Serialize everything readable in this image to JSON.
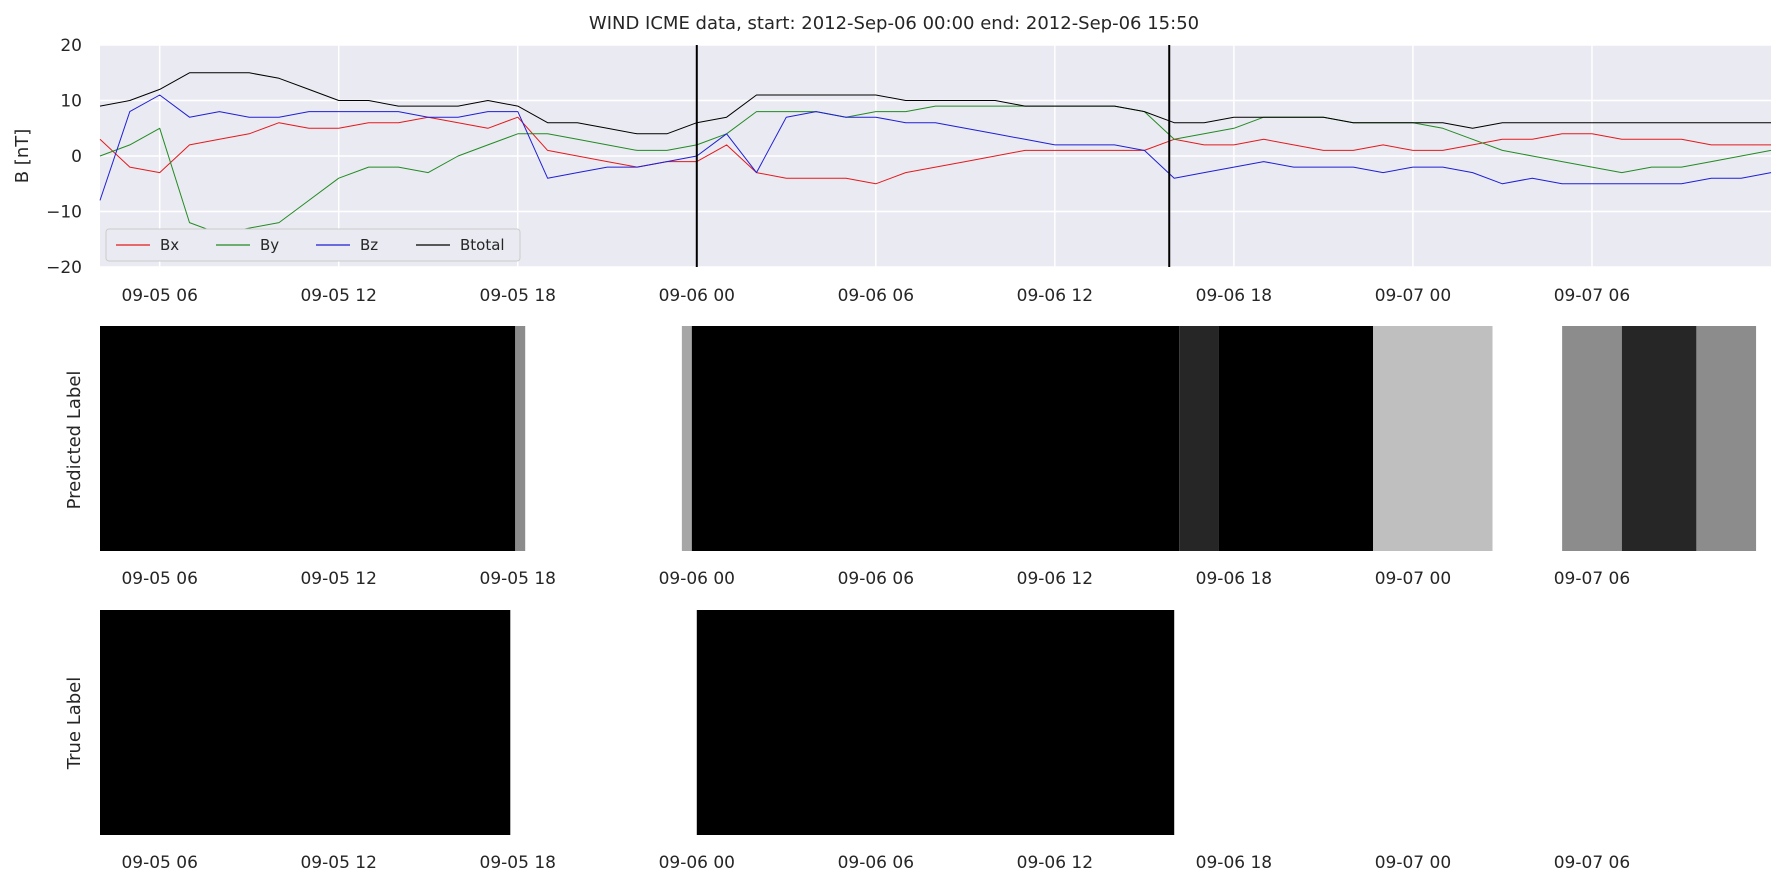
{
  "chart_data": [
    {
      "type": "line",
      "title": "WIND ICME data, start: 2012-Sep-06 00:00  end: 2012-Sep-06 15:50",
      "xlabel": "",
      "ylabel": "B [nT]",
      "ylim": [
        -20,
        20
      ],
      "yticks": [
        20,
        10,
        0,
        -10,
        -20
      ],
      "x_start": "2012-09-05 04:00",
      "x_end": "2012-09-07 12:00",
      "xticks": [
        "09-05 06",
        "09-05 12",
        "09-05 18",
        "09-06 00",
        "09-06 06",
        "09-06 12",
        "09-06 18",
        "09-07 00",
        "09-07 06"
      ],
      "grid": true,
      "legend": "lower-left",
      "event_markers": [
        "2012-09-06 00:00",
        "2012-09-06 15:50"
      ],
      "series": [
        {
          "name": "Bx",
          "color": "#e41a1c",
          "x": [
            "09-05 04:00",
            "09-05 05:00",
            "09-05 06:00",
            "09-05 07:00",
            "09-05 08:00",
            "09-05 09:00",
            "09-05 10:00",
            "09-05 11:00",
            "09-05 12:00",
            "09-05 13:00",
            "09-05 14:00",
            "09-05 15:00",
            "09-05 16:00",
            "09-05 17:00",
            "09-05 18:00",
            "09-05 19:00",
            "09-05 20:00",
            "09-05 21:00",
            "09-05 22:00",
            "09-05 23:00",
            "09-06 00:00",
            "09-06 01:00",
            "09-06 02:00",
            "09-06 03:00",
            "09-06 04:00",
            "09-06 05:00",
            "09-06 06:00",
            "09-06 07:00",
            "09-06 08:00",
            "09-06 09:00",
            "09-06 10:00",
            "09-06 11:00",
            "09-06 12:00",
            "09-06 13:00",
            "09-06 14:00",
            "09-06 15:00",
            "09-06 16:00",
            "09-06 17:00",
            "09-06 18:00",
            "09-06 19:00",
            "09-06 20:00",
            "09-06 21:00",
            "09-06 22:00",
            "09-06 23:00",
            "09-07 00:00",
            "09-07 01:00",
            "09-07 02:00",
            "09-07 03:00",
            "09-07 04:00",
            "09-07 05:00",
            "09-07 06:00",
            "09-07 07:00",
            "09-07 08:00",
            "09-07 09:00",
            "09-07 10:00",
            "09-07 11:00",
            "09-07 12:00"
          ],
          "values": [
            3,
            -2,
            -3,
            2,
            3,
            4,
            6,
            5,
            5,
            6,
            6,
            7,
            6,
            5,
            7,
            1,
            0,
            -1,
            -2,
            -1,
            -1,
            2,
            -3,
            -4,
            -4,
            -4,
            -5,
            -3,
            -2,
            -1,
            0,
            1,
            1,
            1,
            1,
            1,
            3,
            2,
            2,
            3,
            2,
            1,
            1,
            2,
            1,
            1,
            2,
            3,
            3,
            4,
            4,
            3,
            3,
            3,
            2,
            2,
            2
          ]
        },
        {
          "name": "By",
          "color": "#228b22",
          "x": [
            "09-05 04:00",
            "09-05 05:00",
            "09-05 06:00",
            "09-05 07:00",
            "09-05 08:00",
            "09-05 09:00",
            "09-05 10:00",
            "09-05 11:00",
            "09-05 12:00",
            "09-05 13:00",
            "09-05 14:00",
            "09-05 15:00",
            "09-05 16:00",
            "09-05 17:00",
            "09-05 18:00",
            "09-05 19:00",
            "09-05 20:00",
            "09-05 21:00",
            "09-05 22:00",
            "09-05 23:00",
            "09-06 00:00",
            "09-06 01:00",
            "09-06 02:00",
            "09-06 03:00",
            "09-06 04:00",
            "09-06 05:00",
            "09-06 06:00",
            "09-06 07:00",
            "09-06 08:00",
            "09-06 09:00",
            "09-06 10:00",
            "09-06 11:00",
            "09-06 12:00",
            "09-06 13:00",
            "09-06 14:00",
            "09-06 15:00",
            "09-06 16:00",
            "09-06 17:00",
            "09-06 18:00",
            "09-06 19:00",
            "09-06 20:00",
            "09-06 21:00",
            "09-06 22:00",
            "09-06 23:00",
            "09-07 00:00",
            "09-07 01:00",
            "09-07 02:00",
            "09-07 03:00",
            "09-07 04:00",
            "09-07 05:00",
            "09-07 06:00",
            "09-07 07:00",
            "09-07 08:00",
            "09-07 09:00",
            "09-07 10:00",
            "09-07 11:00",
            "09-07 12:00"
          ],
          "values": [
            0,
            2,
            5,
            -12,
            -14,
            -13,
            -12,
            -8,
            -4,
            -2,
            -2,
            -3,
            0,
            2,
            4,
            4,
            3,
            2,
            1,
            1,
            2,
            4,
            8,
            8,
            8,
            7,
            8,
            8,
            9,
            9,
            9,
            9,
            9,
            9,
            9,
            8,
            3,
            4,
            5,
            7,
            7,
            7,
            6,
            6,
            6,
            5,
            3,
            1,
            0,
            -1,
            -2,
            -3,
            -2,
            -2,
            -1,
            0,
            1
          ]
        },
        {
          "name": "Bz",
          "color": "#1f1fd6",
          "x": [
            "09-05 04:00",
            "09-05 05:00",
            "09-05 06:00",
            "09-05 07:00",
            "09-05 08:00",
            "09-05 09:00",
            "09-05 10:00",
            "09-05 11:00",
            "09-05 12:00",
            "09-05 13:00",
            "09-05 14:00",
            "09-05 15:00",
            "09-05 16:00",
            "09-05 17:00",
            "09-05 18:00",
            "09-05 19:00",
            "09-05 20:00",
            "09-05 21:00",
            "09-05 22:00",
            "09-05 23:00",
            "09-06 00:00",
            "09-06 01:00",
            "09-06 02:00",
            "09-06 03:00",
            "09-06 04:00",
            "09-06 05:00",
            "09-06 06:00",
            "09-06 07:00",
            "09-06 08:00",
            "09-06 09:00",
            "09-06 10:00",
            "09-06 11:00",
            "09-06 12:00",
            "09-06 13:00",
            "09-06 14:00",
            "09-06 15:00",
            "09-06 16:00",
            "09-06 17:00",
            "09-06 18:00",
            "09-06 19:00",
            "09-06 20:00",
            "09-06 21:00",
            "09-06 22:00",
            "09-06 23:00",
            "09-07 00:00",
            "09-07 01:00",
            "09-07 02:00",
            "09-07 03:00",
            "09-07 04:00",
            "09-07 05:00",
            "09-07 06:00",
            "09-07 07:00",
            "09-07 08:00",
            "09-07 09:00",
            "09-07 10:00",
            "09-07 11:00",
            "09-07 12:00"
          ],
          "values": [
            -8,
            8,
            11,
            7,
            8,
            7,
            7,
            8,
            8,
            8,
            8,
            7,
            7,
            8,
            8,
            -4,
            -3,
            -2,
            -2,
            -1,
            0,
            4,
            -3,
            7,
            8,
            7,
            7,
            6,
            6,
            5,
            4,
            3,
            2,
            2,
            2,
            1,
            -4,
            -3,
            -2,
            -1,
            -2,
            -2,
            -2,
            -3,
            -2,
            -2,
            -3,
            -5,
            -4,
            -5,
            -5,
            -5,
            -5,
            -5,
            -4,
            -4,
            -3
          ]
        },
        {
          "name": "Btotal",
          "color": "#000000",
          "x": [
            "09-05 04:00",
            "09-05 05:00",
            "09-05 06:00",
            "09-05 07:00",
            "09-05 08:00",
            "09-05 09:00",
            "09-05 10:00",
            "09-05 11:00",
            "09-05 12:00",
            "09-05 13:00",
            "09-05 14:00",
            "09-05 15:00",
            "09-05 16:00",
            "09-05 17:00",
            "09-05 18:00",
            "09-05 19:00",
            "09-05 20:00",
            "09-05 21:00",
            "09-05 22:00",
            "09-05 23:00",
            "09-06 00:00",
            "09-06 01:00",
            "09-06 02:00",
            "09-06 03:00",
            "09-06 04:00",
            "09-06 05:00",
            "09-06 06:00",
            "09-06 07:00",
            "09-06 08:00",
            "09-06 09:00",
            "09-06 10:00",
            "09-06 11:00",
            "09-06 12:00",
            "09-06 13:00",
            "09-06 14:00",
            "09-06 15:00",
            "09-06 16:00",
            "09-06 17:00",
            "09-06 18:00",
            "09-06 19:00",
            "09-06 20:00",
            "09-06 21:00",
            "09-06 22:00",
            "09-06 23:00",
            "09-07 00:00",
            "09-07 01:00",
            "09-07 02:00",
            "09-07 03:00",
            "09-07 04:00",
            "09-07 05:00",
            "09-07 06:00",
            "09-07 07:00",
            "09-07 08:00",
            "09-07 09:00",
            "09-07 10:00",
            "09-07 11:00",
            "09-07 12:00"
          ],
          "values": [
            9,
            10,
            12,
            15,
            15,
            15,
            14,
            12,
            10,
            10,
            9,
            9,
            9,
            10,
            9,
            6,
            6,
            5,
            4,
            4,
            6,
            7,
            11,
            11,
            11,
            11,
            11,
            10,
            10,
            10,
            10,
            9,
            9,
            9,
            9,
            8,
            6,
            6,
            7,
            7,
            7,
            7,
            6,
            6,
            6,
            6,
            5,
            6,
            6,
            6,
            6,
            6,
            6,
            6,
            6,
            6,
            6
          ]
        }
      ]
    },
    {
      "type": "heatmap",
      "ylabel": "Predicted Label",
      "colormap": "white-to-black",
      "x_start": "2012-09-05 04:00",
      "x_end": "2012-09-07 12:00",
      "xticks": [
        "09-05 06",
        "09-05 12",
        "09-05 18",
        "09-06 00",
        "09-06 06",
        "09-06 12",
        "09-06 18",
        "09-07 00",
        "09-07 06"
      ],
      "segments": [
        {
          "start": "09-05 04:00",
          "end": "09-05 17:55",
          "value": 1.0
        },
        {
          "start": "09-05 17:55",
          "end": "09-05 18:15",
          "value": 0.45
        },
        {
          "start": "09-05 23:30",
          "end": "09-05 23:50",
          "value": 0.35
        },
        {
          "start": "09-05 23:50",
          "end": "09-06 16:10",
          "value": 1.0
        },
        {
          "start": "09-06 16:10",
          "end": "09-06 17:30",
          "value": 0.85
        },
        {
          "start": "09-06 17:30",
          "end": "09-06 22:40",
          "value": 1.0
        },
        {
          "start": "09-06 22:40",
          "end": "09-07 02:40",
          "value": 0.25
        },
        {
          "start": "09-07 05:00",
          "end": "09-07 07:00",
          "value": 0.45
        },
        {
          "start": "09-07 07:00",
          "end": "09-07 09:30",
          "value": 0.85
        },
        {
          "start": "09-07 09:30",
          "end": "09-07 11:30",
          "value": 0.45
        }
      ]
    },
    {
      "type": "heatmap",
      "ylabel": "True Label",
      "colormap": "white-to-black",
      "x_start": "2012-09-05 04:00",
      "x_end": "2012-09-07 12:00",
      "xticks": [
        "09-05 06",
        "09-05 12",
        "09-05 18",
        "09-06 00",
        "09-06 06",
        "09-06 12",
        "09-06 18",
        "09-07 00",
        "09-07 06"
      ],
      "segments": [
        {
          "start": "09-05 04:00",
          "end": "09-05 17:45",
          "value": 1.0
        },
        {
          "start": "09-06 00:00",
          "end": "09-06 16:00",
          "value": 1.0
        }
      ]
    }
  ]
}
